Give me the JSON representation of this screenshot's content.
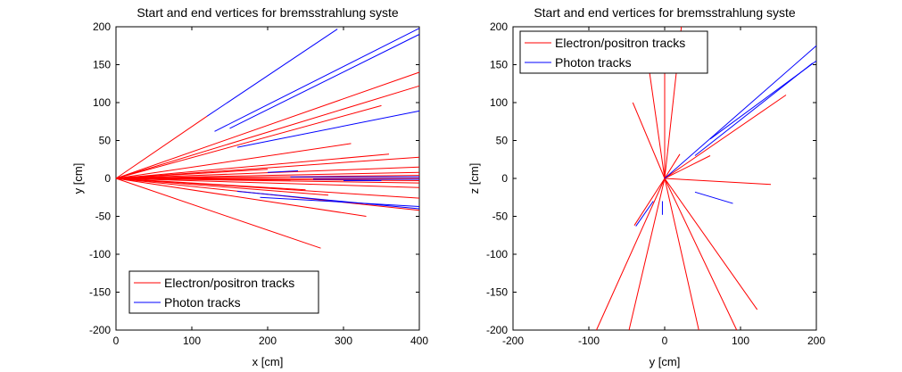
{
  "chart_data": [
    {
      "type": "line",
      "title": "Start and end vertices for bremsstrahlung syste",
      "xlabel": "x [cm]",
      "ylabel": "y [cm]",
      "xlim": [
        0,
        400
      ],
      "ylim": [
        -200,
        200
      ],
      "xticks": [
        0,
        100,
        200,
        300,
        400
      ],
      "yticks": [
        200,
        150,
        100,
        50,
        0,
        -50,
        -100,
        -150,
        -200
      ],
      "grid": false,
      "legend_position": "bottom-left",
      "legend": [
        "Electron/positron tracks",
        "Photon tracks"
      ],
      "series": [
        {
          "name": "Electron/positron tracks",
          "color": "#ff0000",
          "segments": [
            [
              [
                0,
                0
              ],
              [
                120,
                82
              ]
            ],
            [
              [
                0,
                0
              ],
              [
                400,
                140
              ]
            ],
            [
              [
                0,
                0
              ],
              [
                400,
                122
              ]
            ],
            [
              [
                0,
                0
              ],
              [
                350,
                96
              ]
            ],
            [
              [
                0,
                0
              ],
              [
                310,
                46
              ]
            ],
            [
              [
                0,
                0
              ],
              [
                360,
                32
              ]
            ],
            [
              [
                0,
                0
              ],
              [
                400,
                28
              ]
            ],
            [
              [
                0,
                0
              ],
              [
                400,
                15
              ]
            ],
            [
              [
                0,
                0
              ],
              [
                400,
                8
              ]
            ],
            [
              [
                0,
                0
              ],
              [
                400,
                4
              ]
            ],
            [
              [
                0,
                0
              ],
              [
                400,
                0
              ]
            ],
            [
              [
                0,
                0
              ],
              [
                400,
                -3
              ]
            ],
            [
              [
                0,
                0
              ],
              [
                400,
                -6
              ]
            ],
            [
              [
                0,
                0
              ],
              [
                400,
                -12
              ]
            ],
            [
              [
                0,
                0
              ],
              [
                400,
                -26
              ]
            ],
            [
              [
                0,
                0
              ],
              [
                400,
                -42
              ]
            ],
            [
              [
                0,
                0
              ],
              [
                330,
                -50
              ]
            ],
            [
              [
                0,
                0
              ],
              [
                270,
                -92
              ]
            ],
            [
              [
                0,
                0
              ],
              [
                200,
                12
              ]
            ],
            [
              [
                0,
                0
              ],
              [
                250,
                -15
              ]
            ],
            [
              [
                0,
                0
              ],
              [
                280,
                -22
              ]
            ],
            [
              [
                0,
                0
              ],
              [
                230,
                -2
              ]
            ]
          ]
        },
        {
          "name": "Photon tracks",
          "color": "#0000ff",
          "segments": [
            [
              [
                120,
                82
              ],
              [
                292,
                197
              ]
            ],
            [
              [
                130,
                62
              ],
              [
                400,
                198
              ]
            ],
            [
              [
                150,
                66
              ],
              [
                400,
                190
              ]
            ],
            [
              [
                160,
                41
              ],
              [
                400,
                89
              ]
            ],
            [
              [
                230,
                2
              ],
              [
                400,
                2
              ]
            ],
            [
              [
                260,
                -1
              ],
              [
                400,
                -1
              ]
            ],
            [
              [
                160,
                -17
              ],
              [
                400,
                -40
              ]
            ],
            [
              [
                190,
                -25
              ],
              [
                400,
                -37
              ]
            ],
            [
              [
                200,
                8
              ],
              [
                240,
                10
              ]
            ],
            [
              [
                300,
                -3
              ],
              [
                350,
                -3
              ]
            ]
          ]
        }
      ]
    },
    {
      "type": "line",
      "title": "Start and end vertices for bremsstrahlung syste",
      "xlabel": "y [cm]",
      "ylabel": "z [cm]",
      "xlim": [
        -200,
        200
      ],
      "ylim": [
        -200,
        200
      ],
      "xticks": [
        -200,
        -100,
        0,
        100,
        200
      ],
      "yticks": [
        200,
        150,
        100,
        50,
        0,
        -50,
        -100,
        -150,
        -200
      ],
      "grid": false,
      "legend_position": "top-left",
      "legend": [
        "Electron/positron tracks",
        "Photon tracks"
      ],
      "series": [
        {
          "name": "Electron/positron tracks",
          "color": "#ff0000",
          "segments": [
            [
              [
                0,
                0
              ],
              [
                -20,
                140
              ]
            ],
            [
              [
                0,
                0
              ],
              [
                0,
                150
              ]
            ],
            [
              [
                0,
                0
              ],
              [
                22,
                200
              ]
            ],
            [
              [
                0,
                0
              ],
              [
                -42,
                100
              ]
            ],
            [
              [
                0,
                0
              ],
              [
                20,
                32
              ]
            ],
            [
              [
                0,
                0
              ],
              [
                140,
                -8
              ]
            ],
            [
              [
                0,
                0
              ],
              [
                122,
                -173
              ]
            ],
            [
              [
                0,
                0
              ],
              [
                95,
                -200
              ]
            ],
            [
              [
                0,
                0
              ],
              [
                45,
                -200
              ]
            ],
            [
              [
                0,
                0
              ],
              [
                -47,
                -200
              ]
            ],
            [
              [
                0,
                0
              ],
              [
                -90,
                -200
              ]
            ],
            [
              [
                0,
                0
              ],
              [
                -40,
                -62
              ]
            ],
            [
              [
                0,
                0
              ],
              [
                60,
                30
              ]
            ],
            [
              [
                0,
                0
              ],
              [
                160,
                110
              ]
            ]
          ]
        },
        {
          "name": "Photon tracks",
          "color": "#0000ff",
          "segments": [
            [
              [
                0,
                0
              ],
              [
                200,
                175
              ]
            ],
            [
              [
                60,
                52
              ],
              [
                200,
                155
              ]
            ],
            [
              [
                40,
                30
              ],
              [
                195,
                152
              ]
            ],
            [
              [
                40,
                -18
              ],
              [
                90,
                -33
              ]
            ],
            [
              [
                -15,
                -30
              ],
              [
                -38,
                -63
              ]
            ],
            [
              [
                -3,
                -30
              ],
              [
                -3,
                -48
              ]
            ]
          ]
        }
      ]
    }
  ]
}
